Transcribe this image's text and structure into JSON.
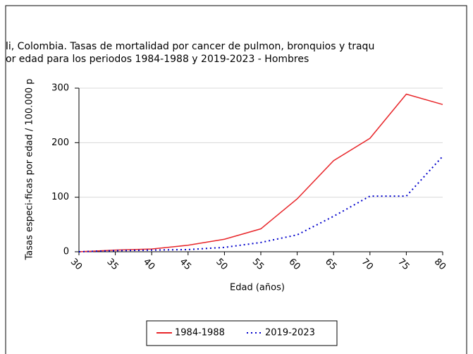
{
  "chart_data": {
    "type": "line",
    "title": [
      "li, Colombia. Tasas de mortalidad por cancer de pulmon, bronquios y traqu",
      "or edad para los periodos 1984-1988 y 2019-2023 - Hombres"
    ],
    "x_label": "Edad (años)",
    "y_label": "Tasas especi-ficas por edad / 100.000 p",
    "x": [
      30,
      35,
      40,
      45,
      50,
      55,
      60,
      65,
      70,
      75,
      80
    ],
    "xlim": [
      30,
      80
    ],
    "xticks": [
      30,
      35,
      40,
      45,
      50,
      55,
      60,
      65,
      70,
      75,
      80
    ],
    "ylim": [
      0,
      300
    ],
    "yticks": [
      0,
      100,
      200,
      300
    ],
    "grid": true,
    "series": [
      {
        "name": "1984-1988",
        "color": "#e8262a",
        "dash": false,
        "values": [
          0,
          3,
          5,
          12,
          23,
          42,
          97,
          167,
          208,
          289,
          270
        ]
      },
      {
        "name": "2019-2023",
        "color": "#0000cc",
        "dash": true,
        "values": [
          0,
          2,
          3,
          4,
          8,
          17,
          31,
          65,
          102,
          102,
          175
        ]
      }
    ],
    "legend": "bottom"
  }
}
